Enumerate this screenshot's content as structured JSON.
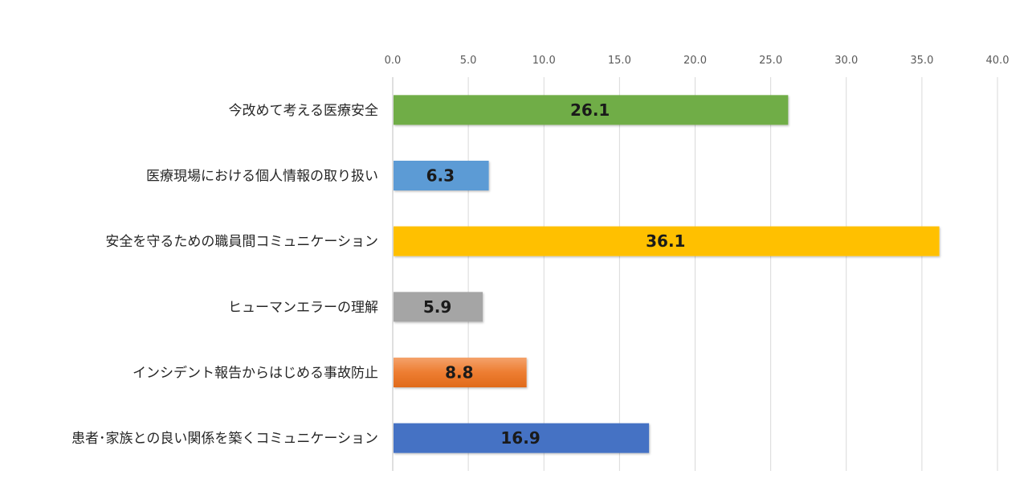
{
  "chart_data": {
    "type": "bar",
    "orientation": "horizontal",
    "categories": [
      "今改めて考える医療安全",
      "医療現場における個人情報の取り扱い",
      "安全を守るための職員間コミュニケーション",
      "ヒューマンエラーの理解",
      "インシデント報告からはじめる事故防止",
      "患者･家族との良い関係を築くコミュニケーション"
    ],
    "values": [
      26.1,
      6.3,
      36.1,
      5.9,
      8.8,
      16.9
    ],
    "value_labels": [
      "26.1",
      "6.3",
      "36.1",
      "5.9",
      "8.8",
      "16.9"
    ],
    "colors": [
      "#70ad47",
      "#5b9bd5",
      "#ffc000",
      "#a5a5a5",
      "#ed7d31",
      "#4472c4"
    ],
    "xlim": [
      0,
      40
    ],
    "xticks": [
      "0.0",
      "5.0",
      "10.0",
      "15.0",
      "20.0",
      "25.0",
      "30.0",
      "35.0",
      "40.0"
    ],
    "tick_positions": [
      0,
      5,
      10,
      15,
      20,
      25,
      30,
      35,
      40
    ],
    "x_axis_position": "top",
    "grid": true,
    "legend": "none"
  }
}
